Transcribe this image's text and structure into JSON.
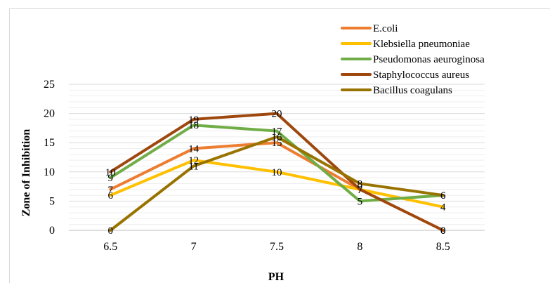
{
  "chart_data": {
    "type": "line",
    "title": "",
    "xlabel": "PH",
    "ylabel": "Zone of Inhibition",
    "categories": [
      "6.5",
      "7",
      "7.5",
      "8",
      "8.5"
    ],
    "ylim": [
      0,
      25
    ],
    "yticks": [
      "0",
      "5",
      "10",
      "15",
      "20",
      "25"
    ],
    "grid": true,
    "legend_position": "top-right",
    "series": [
      {
        "name": "E.coli",
        "color": "#ed7d31",
        "values": [
          7,
          14,
          15,
          7,
          0
        ]
      },
      {
        "name": "Klebsiella pneumoniae",
        "color": "#ffc000",
        "values": [
          6,
          12,
          10,
          7,
          4
        ]
      },
      {
        "name": "Pseudomonas aeuroginosa",
        "color": "#70ad47",
        "values": [
          9,
          18,
          17,
          5,
          6
        ]
      },
      {
        "name": "Staphylococcus aureus",
        "color": "#9e480e",
        "values": [
          10,
          19,
          20,
          7,
          0
        ]
      },
      {
        "name": "Bacillus coagulans",
        "color": "#997300",
        "values": [
          0,
          11,
          16,
          8,
          6
        ]
      }
    ]
  }
}
